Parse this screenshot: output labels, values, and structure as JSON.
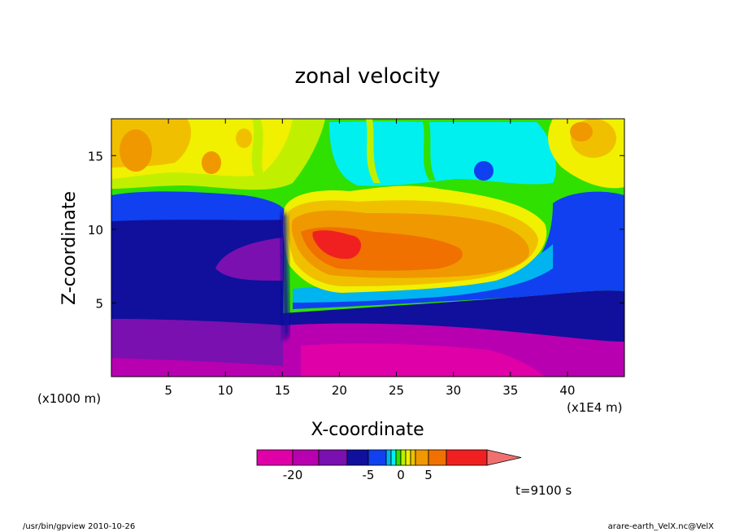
{
  "chart_data": {
    "type": "heatmap",
    "title": "zonal velocity",
    "xlabel": "X-coordinate",
    "ylabel": "Z-coordinate",
    "x_unit_left": "(x1000 m)",
    "x_unit_right": "(x1E4 m)",
    "xlim": [
      0,
      45
    ],
    "ylim": [
      0,
      17.5
    ],
    "x_ticks": [
      "5",
      "10",
      "15",
      "20",
      "25",
      "30",
      "35",
      "40"
    ],
    "x_tick_values": [
      5,
      10,
      15,
      20,
      25,
      30,
      35,
      40
    ],
    "y_ticks": [
      "5",
      "10",
      "15"
    ],
    "y_tick_values": [
      5,
      10,
      15
    ],
    "time_label": "t=9100 s",
    "colorbar": {
      "levels": [
        -25,
        -20,
        -15,
        -10,
        -5,
        -3,
        -2,
        -1,
        0,
        1,
        2,
        3,
        5,
        10,
        15,
        20
      ],
      "colors": [
        "#e000a8",
        "#b800b0",
        "#7a10b0",
        "#10109c",
        "#1040f0",
        "#00b4f0",
        "#00f0f0",
        "#30e000",
        "#c0f000",
        "#f0f000",
        "#f0c000",
        "#f09800",
        "#f07000",
        "#f02020",
        "#f07070"
      ],
      "tick_labels": [
        "-20",
        "-5",
        "0",
        "5"
      ],
      "tick_values": [
        -20,
        -5,
        0,
        5
      ],
      "extend": "max"
    }
  },
  "footer": {
    "left": "/usr/bin/gpview   2010-10-26",
    "right": "arare-earth_VelX.nc@VelX"
  }
}
